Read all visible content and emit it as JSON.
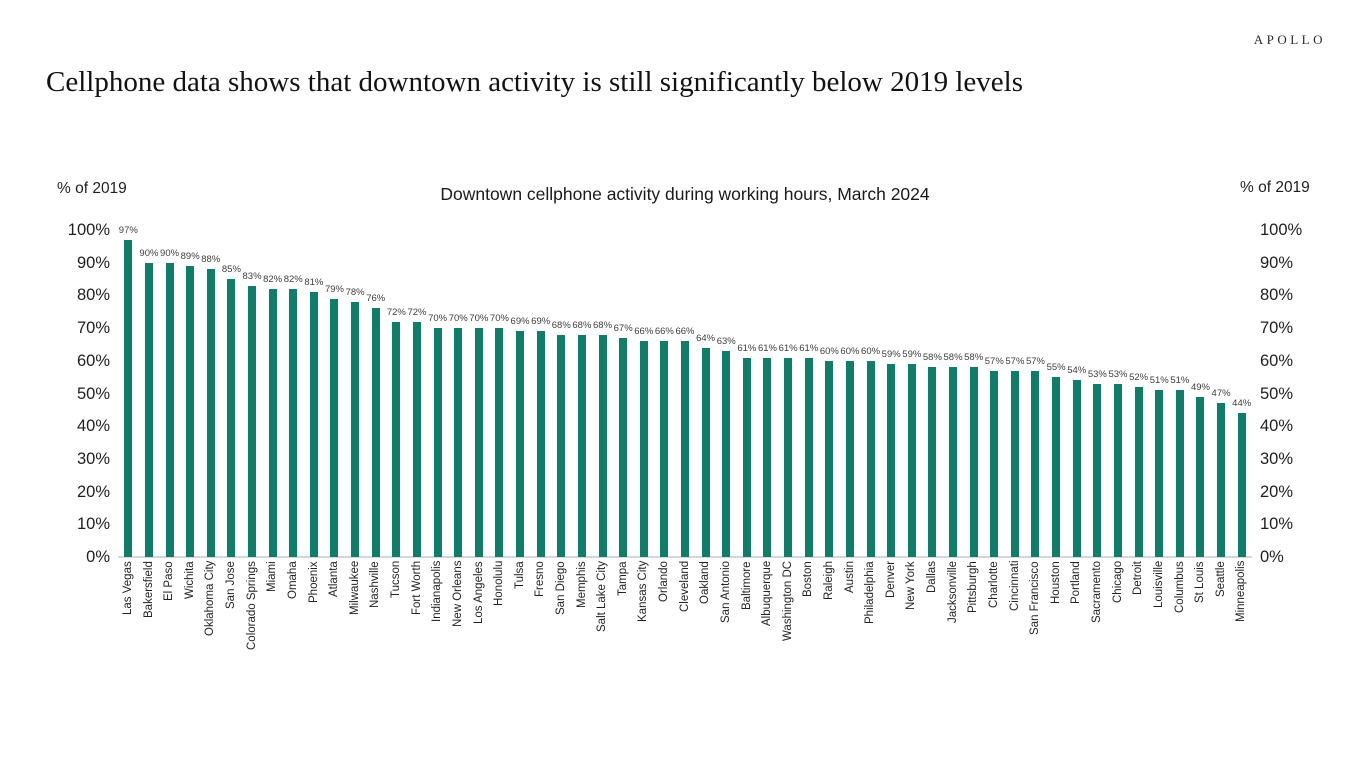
{
  "brand": {
    "logo": "APOLLO"
  },
  "headline": "Cellphone data shows that downtown activity is still significantly below 2019 levels",
  "chart_data": {
    "type": "bar",
    "title": "Downtown cellphone activity during working hours, March 2024",
    "axis_label_left": "% of 2019",
    "axis_label_right": "% of 2019",
    "value_suffix": "%",
    "ylim": [
      0,
      100
    ],
    "ytick_step": 10,
    "bar_color": "#107d69",
    "baseline_color": "#d6d6d6",
    "legend": "none",
    "grid": false,
    "categories": [
      "Las Vegas",
      "Bakersfield",
      "El Paso",
      "Wichita",
      "Oklahoma City",
      "San Jose",
      "Colorado Springs",
      "Miami",
      "Omaha",
      "Phoenix",
      "Atlanta",
      "Milwaukee",
      "Nashville",
      "Tucson",
      "Fort Worth",
      "Indianapolis",
      "New Orleans",
      "Los Angeles",
      "Honolulu",
      "Tulsa",
      "Fresno",
      "San Diego",
      "Memphis",
      "Salt Lake City",
      "Tampa",
      "Kansas City",
      "Orlando",
      "Cleveland",
      "Oakland",
      "San Antonio",
      "Baltimore",
      "Albuquerque",
      "Washington DC",
      "Boston",
      "Raleigh",
      "Austin",
      "Philadelphia",
      "Denver",
      "New York",
      "Dallas",
      "Jacksonville",
      "Pittsburgh",
      "Charlotte",
      "Cincinnati",
      "San Francisco",
      "Houston",
      "Portland",
      "Sacramento",
      "Chicago",
      "Detroit",
      "Louisville",
      "Columbus",
      "St Louis",
      "Seattle",
      "Minneapolis"
    ],
    "values": [
      97,
      90,
      90,
      89,
      88,
      85,
      83,
      82,
      82,
      81,
      79,
      78,
      76,
      72,
      72,
      70,
      70,
      70,
      70,
      69,
      69,
      68,
      68,
      68,
      67,
      66,
      66,
      66,
      64,
      63,
      61,
      61,
      61,
      61,
      60,
      60,
      60,
      59,
      59,
      58,
      58,
      58,
      57,
      57,
      57,
      55,
      54,
      53,
      53,
      52,
      51,
      51,
      49,
      47,
      44
    ]
  }
}
